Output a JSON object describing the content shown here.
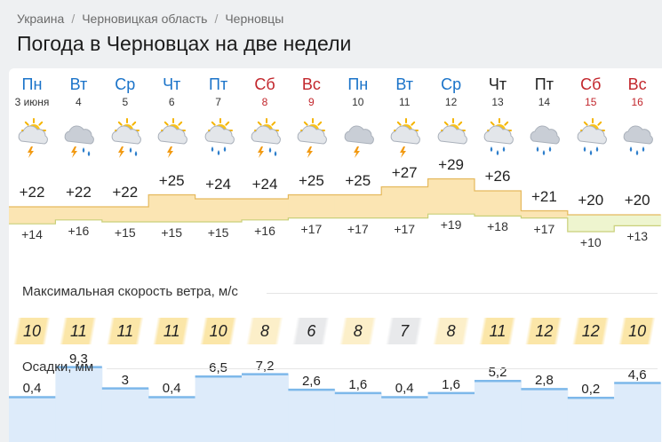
{
  "breadcrumbs": [
    "Украина",
    "Черновицкая область",
    "Черновцы"
  ],
  "breadcrumb_separator": "/",
  "title": "Погода в Черновцах на две недели",
  "wind_title": "Максимальная скорость ветра, м/с",
  "precip_title": "Осадки, мм",
  "colors": {
    "weekday": "#1a73c9",
    "weekend": "#c2262c",
    "temp_fill": "#fbe5b3",
    "cool_fill": "#eef5cf",
    "precip_fill": "#ddebfa",
    "precip_line": "#7db8ea"
  },
  "days": [
    {
      "name": "Пн",
      "date": "3 июня",
      "weekend": false,
      "icon": "sun-cloud-storm-icon",
      "tmax": "+22",
      "tmin": "+14",
      "max_value": 22,
      "min_value": 14,
      "wind": "10",
      "wind_value": 10,
      "precip": "0,4",
      "precip_value": 0.4
    },
    {
      "name": "Вт",
      "date": "4",
      "weekend": false,
      "icon": "cloud-storm-rain-icon",
      "tmax": "+22",
      "tmin": "+16",
      "max_value": 22,
      "min_value": 16,
      "wind": "11",
      "wind_value": 11,
      "precip": "9,3",
      "precip_value": 9.3
    },
    {
      "name": "Ср",
      "date": "5",
      "weekend": false,
      "icon": "sun-cloud-storm-rain-icon",
      "tmax": "+22",
      "tmin": "+15",
      "max_value": 22,
      "min_value": 15,
      "wind": "11",
      "wind_value": 11,
      "precip": "3",
      "precip_value": 3
    },
    {
      "name": "Чт",
      "date": "6",
      "weekend": false,
      "icon": "sun-cloud-storm-icon",
      "tmax": "+25",
      "tmin": "+15",
      "max_value": 25,
      "min_value": 15,
      "wind": "11",
      "wind_value": 11,
      "precip": "0,4",
      "precip_value": 0.4
    },
    {
      "name": "Пт",
      "date": "7",
      "weekend": false,
      "icon": "sun-cloud-rain-icon",
      "tmax": "+24",
      "tmin": "+15",
      "max_value": 24,
      "min_value": 15,
      "wind": "10",
      "wind_value": 10,
      "precip": "6,5",
      "precip_value": 6.5
    },
    {
      "name": "Сб",
      "date": "8",
      "weekend": true,
      "icon": "sun-cloud-storm-rain-icon",
      "tmax": "+24",
      "tmin": "+16",
      "max_value": 24,
      "min_value": 16,
      "wind": "8",
      "wind_value": 8,
      "precip": "7,2",
      "precip_value": 7.2
    },
    {
      "name": "Вс",
      "date": "9",
      "weekend": true,
      "icon": "sun-cloud-storm-icon",
      "tmax": "+25",
      "tmin": "+17",
      "max_value": 25,
      "min_value": 17,
      "wind": "6",
      "wind_value": 6,
      "precip": "2,6",
      "precip_value": 2.6
    },
    {
      "name": "Пн",
      "date": "10",
      "weekend": false,
      "icon": "cloud-storm-icon",
      "tmax": "+25",
      "tmin": "+17",
      "max_value": 25,
      "min_value": 17,
      "wind": "8",
      "wind_value": 8,
      "precip": "1,6",
      "precip_value": 1.6
    },
    {
      "name": "Вт",
      "date": "11",
      "weekend": false,
      "icon": "sun-cloud-storm-icon",
      "tmax": "+27",
      "tmin": "+17",
      "max_value": 27,
      "min_value": 17,
      "wind": "7",
      "wind_value": 7,
      "precip": "0,4",
      "precip_value": 0.4
    },
    {
      "name": "Ср",
      "date": "12",
      "weekend": false,
      "icon": "sun-cloud-icon",
      "tmax": "+29",
      "tmin": "+19",
      "max_value": 29,
      "min_value": 19,
      "wind": "8",
      "wind_value": 8,
      "precip": "1,6",
      "precip_value": 1.6
    },
    {
      "name": "Чт",
      "date": "13",
      "weekend": false,
      "icon": "sun-cloud-rain-icon",
      "tmax": "+26",
      "tmin": "+18",
      "max_value": 26,
      "min_value": 18,
      "wind": "11",
      "wind_value": 11,
      "precip": "5,2",
      "precip_value": 5.2
    },
    {
      "name": "Пт",
      "date": "14",
      "weekend": false,
      "icon": "cloud-rain-icon",
      "tmax": "+21",
      "tmin": "+17",
      "max_value": 21,
      "min_value": 17,
      "wind": "12",
      "wind_value": 12,
      "precip": "2,8",
      "precip_value": 2.8
    },
    {
      "name": "Сб",
      "date": "15",
      "weekend": true,
      "icon": "sun-cloud-rain-icon",
      "tmax": "+20",
      "tmin": "+10",
      "max_value": 20,
      "min_value": 10,
      "wind": "12",
      "wind_value": 12,
      "precip": "0,2",
      "precip_value": 0.2
    },
    {
      "name": "Вс",
      "date": "16",
      "weekend": true,
      "icon": "cloud-rain-icon",
      "tmax": "+20",
      "tmin": "+13",
      "max_value": 20,
      "min_value": 13,
      "wind": "10",
      "wind_value": 10,
      "precip": "4,6",
      "precip_value": 4.6
    }
  ]
}
